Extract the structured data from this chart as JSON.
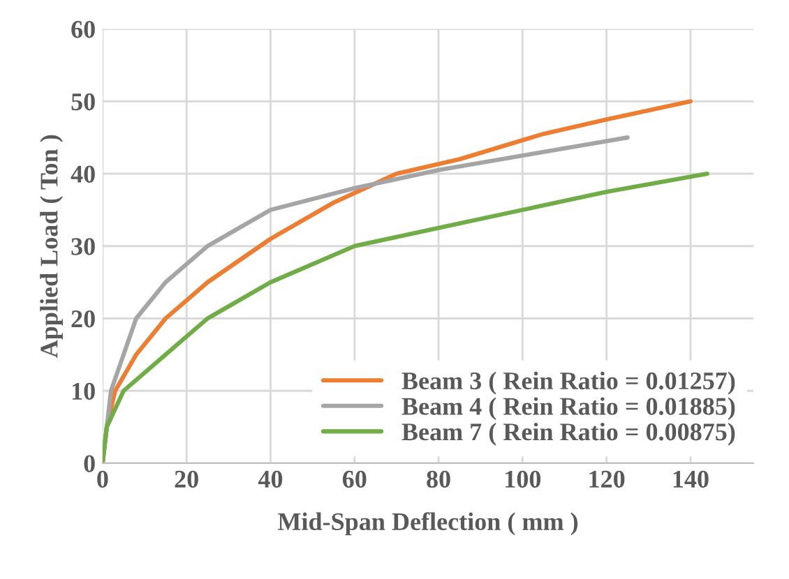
{
  "chart_data": {
    "type": "line",
    "xlabel": "Mid-Span Deflection ( mm )",
    "ylabel": "Applied Load ( Ton )",
    "xlim": [
      0,
      155
    ],
    "xticks": [
      0,
      20,
      40,
      60,
      80,
      100,
      120,
      140
    ],
    "ylim": [
      0,
      60
    ],
    "yticks": [
      0,
      10,
      20,
      30,
      40,
      50,
      60
    ],
    "grid": true,
    "legend": "bottom right",
    "marker": "none",
    "line_style": "solid",
    "series": [
      {
        "name": "Beam 3 ( Rein Ratio = 0.01257)",
        "color": "#ed7d31",
        "x": [
          0,
          1,
          3,
          8,
          15,
          25,
          40,
          55,
          70,
          85,
          105,
          120,
          140
        ],
        "values": [
          0,
          5,
          10,
          15,
          20,
          25,
          31,
          36,
          40,
          42,
          45.5,
          47.5,
          50
        ]
      },
      {
        "name": "Beam 4 ( Rein Ratio = 0.01885)",
        "color": "#a5a5a5",
        "x": [
          0,
          1,
          2,
          8,
          15,
          25,
          40,
          60,
          80,
          100,
          115,
          125
        ],
        "values": [
          0,
          5,
          10,
          20,
          25,
          30,
          35,
          38,
          40.5,
          42.5,
          44,
          45
        ]
      },
      {
        "name": "Beam 7 ( Rein Ratio = 0.00875)",
        "color": "#70ad47",
        "x": [
          0,
          1,
          5,
          15,
          25,
          40,
          60,
          80,
          100,
          120,
          144
        ],
        "values": [
          0,
          5,
          10,
          15,
          20,
          25,
          30,
          32.5,
          35,
          37.5,
          40
        ]
      }
    ]
  }
}
